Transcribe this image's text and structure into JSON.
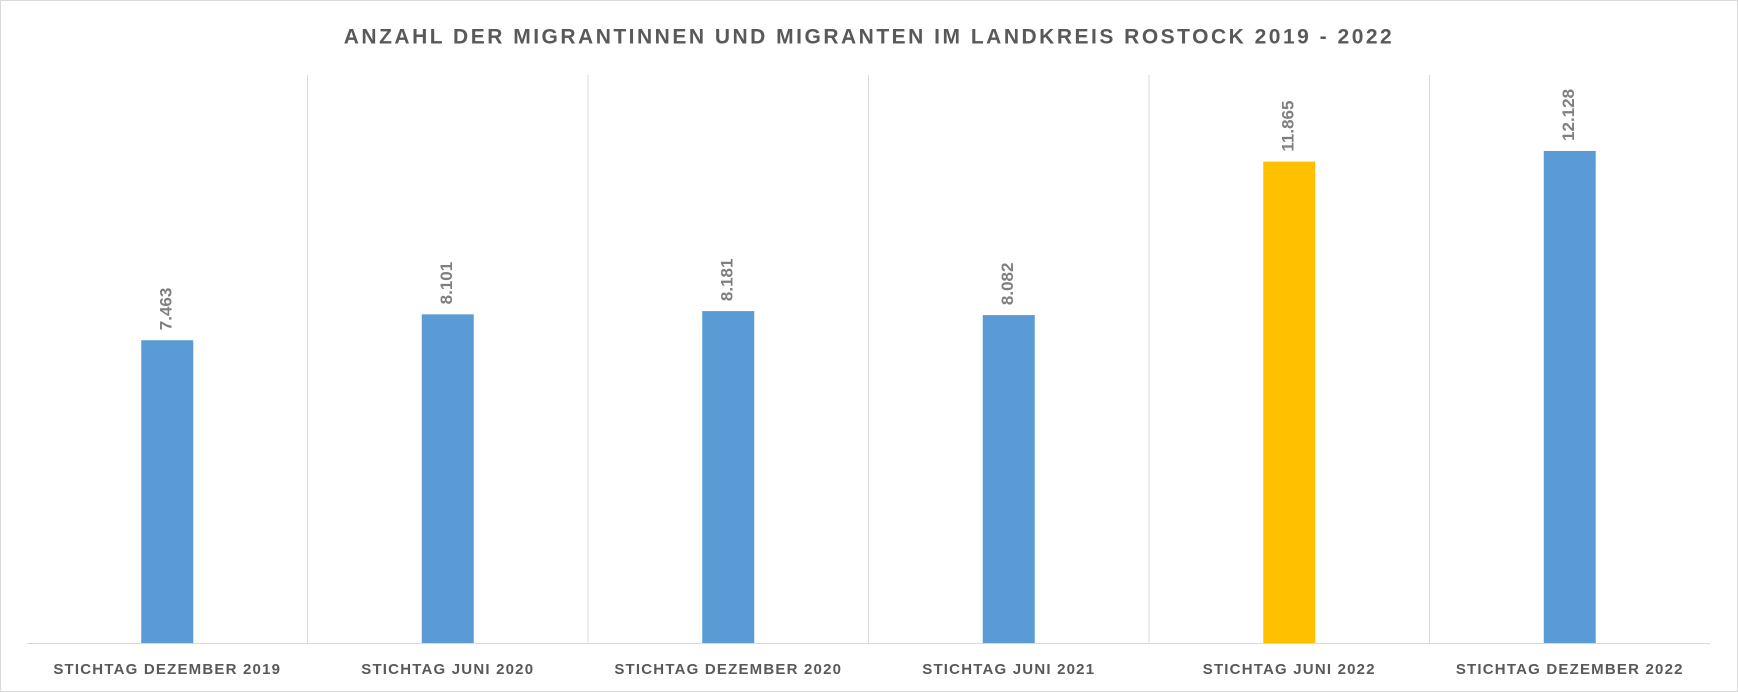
{
  "chart_data": {
    "type": "bar",
    "title": "ANZAHL DER MIGRANTINNEN UND MIGRANTEN IM LANDKREIS ROSTOCK 2019 - 2022",
    "categories": [
      "STICHTAG DEZEMBER 2019",
      "STICHTAG JUNI 2020",
      "STICHTAG DEZEMBER 2020",
      "STICHTAG JUNI 2021",
      "STICHTAG JUNI 2022",
      "STICHTAG DEZEMBER 2022"
    ],
    "values": [
      7463,
      8101,
      8181,
      8082,
      11865,
      12128
    ],
    "value_labels": [
      "7.463",
      "8.101",
      "8.181",
      "8.082",
      "11.865",
      "12.128"
    ],
    "colors": [
      "#5b9bd5",
      "#5b9bd5",
      "#5b9bd5",
      "#5b9bd5",
      "#ffc000",
      "#5b9bd5"
    ],
    "ylim": [
      0,
      14000
    ]
  }
}
